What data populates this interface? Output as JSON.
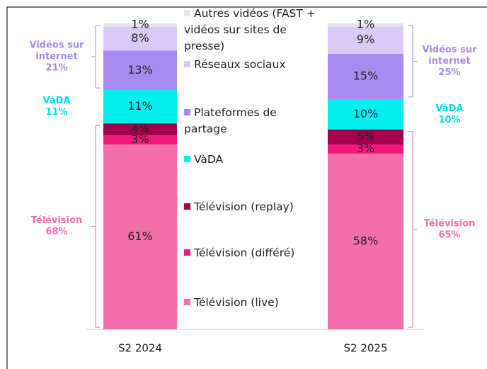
{
  "chart_data": {
    "type": "bar",
    "stacked": true,
    "categories": [
      "S2 2024",
      "S2 2025"
    ],
    "ylim": [
      0,
      101
    ],
    "series": [
      {
        "name": "Télévision (live)",
        "color": "#f36fa9",
        "values": [
          61,
          58
        ],
        "value_labels": [
          "61%",
          "58%"
        ]
      },
      {
        "name": "Télévision (différé)",
        "color": "#f0187a",
        "values": [
          3,
          3
        ],
        "value_labels": [
          "3%",
          "3%"
        ]
      },
      {
        "name": "Télévision (replay)",
        "color": "#a4004a",
        "values": [
          4,
          5
        ],
        "value_labels": [
          "4%",
          "5%"
        ]
      },
      {
        "name": "VàDA",
        "color": "#00f0f0",
        "values": [
          11,
          10
        ],
        "value_labels": [
          "11%",
          "10%"
        ]
      },
      {
        "name": "Plateformes de partage",
        "color": "#a78bf0",
        "values": [
          13,
          15
        ],
        "value_labels": [
          "13%",
          "15%"
        ]
      },
      {
        "name": "Réseaux sociaux",
        "color": "#d8ccf6",
        "values": [
          8,
          9
        ],
        "value_labels": [
          "8%",
          "9%"
        ]
      },
      {
        "name": "Autres vidéos (FAST + vidéos sur sites de presse)",
        "color": "#e6e6e6",
        "values": [
          1,
          1
        ],
        "value_labels": [
          "1%",
          "1%"
        ]
      }
    ],
    "group_labels": [
      [
        {
          "lines": [
            "Télévision",
            "68%"
          ],
          "color": "#f36fa9"
        },
        {
          "lines": [
            "VàDA",
            "11%"
          ],
          "color": "#00e0e8"
        },
        {
          "lines": [
            "Vidéos sur",
            "internet",
            "21%"
          ],
          "color": "#a78bf0"
        }
      ],
      [
        {
          "lines": [
            "Télévision",
            "65%"
          ],
          "color": "#f36fa9"
        },
        {
          "lines": [
            "VàDA",
            "10%"
          ],
          "color": "#00e0e8"
        },
        {
          "lines": [
            "Vidéos sur",
            "internet",
            "25%"
          ],
          "color": "#a78bf0"
        }
      ]
    ]
  }
}
